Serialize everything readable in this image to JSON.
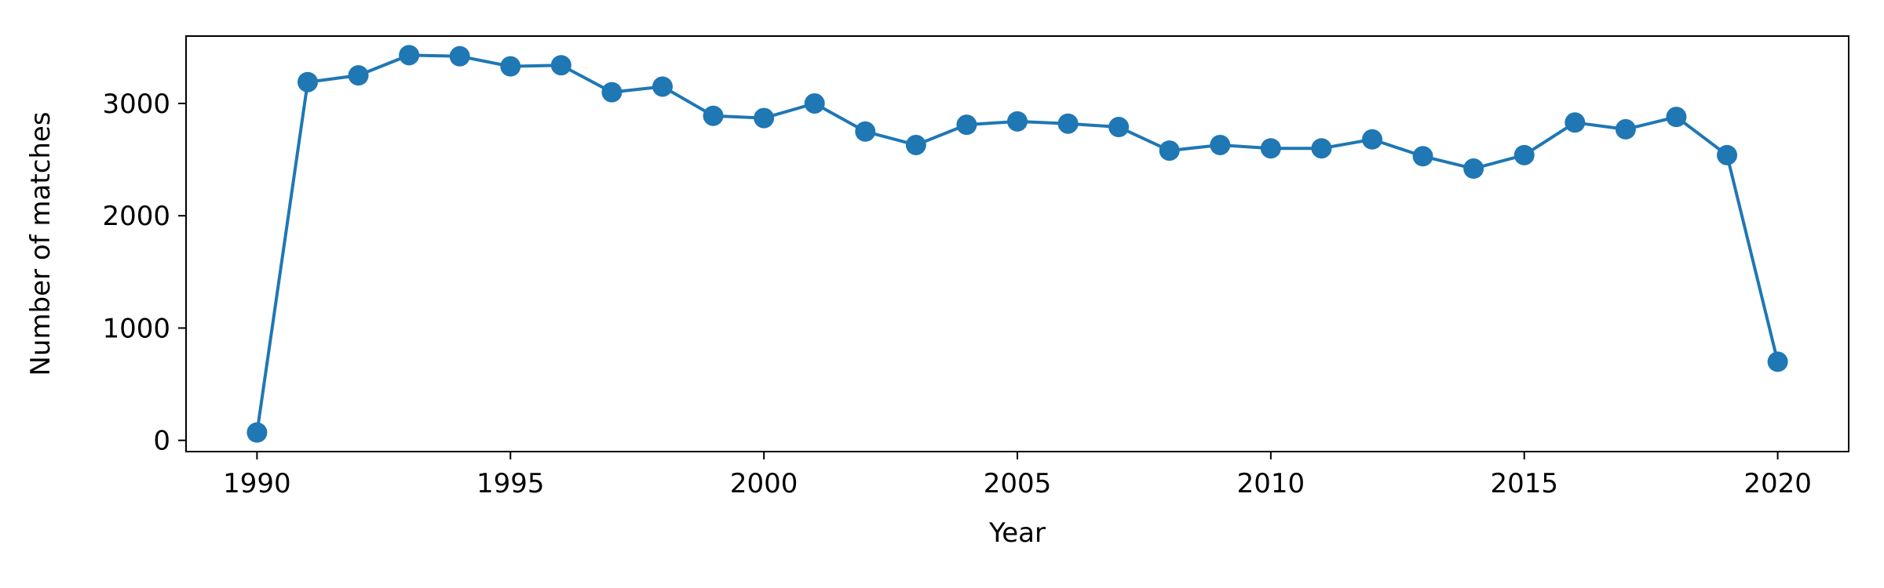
{
  "chart_data": {
    "type": "line",
    "title": "",
    "xlabel": "Year",
    "ylabel": "Number of matches",
    "xlim": [
      1988.6,
      2021.4
    ],
    "ylim": [
      -100,
      3600
    ],
    "xticks": [
      1990,
      1995,
      2000,
      2005,
      2010,
      2015,
      2020
    ],
    "yticks": [
      0,
      1000,
      2000,
      3000
    ],
    "grid": false,
    "legend": "none",
    "marker": "circle",
    "color": "#1f77b4",
    "series": [
      {
        "x": [
          1990,
          1991,
          1992,
          1993,
          1994,
          1995,
          1996,
          1997,
          1998,
          1999,
          2000,
          2001,
          2002,
          2003,
          2004,
          2005,
          2006,
          2007,
          2008,
          2009,
          2010,
          2011,
          2012,
          2013,
          2014,
          2015,
          2016,
          2017,
          2018,
          2019,
          2020
        ],
        "values": [
          70,
          3190,
          3250,
          3430,
          3420,
          3330,
          3340,
          3100,
          3150,
          2890,
          2870,
          3000,
          2750,
          2630,
          2810,
          2840,
          2820,
          2790,
          2580,
          2630,
          2600,
          2600,
          2680,
          2530,
          2420,
          2540,
          2830,
          2770,
          2880,
          2540,
          700
        ]
      }
    ]
  }
}
